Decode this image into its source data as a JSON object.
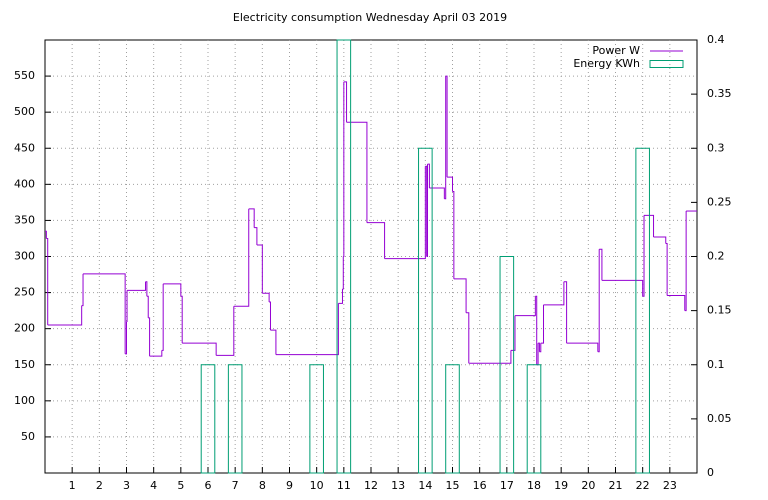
{
  "chart_data": {
    "type": "line",
    "title": "Electricity consumption Wednesday April 03 2019",
    "line_style": "steps",
    "grid": true,
    "legend": "top-right",
    "xlim": [
      0,
      24
    ],
    "xticks": [
      1,
      2,
      3,
      4,
      5,
      6,
      7,
      8,
      9,
      10,
      11,
      12,
      13,
      14,
      15,
      16,
      17,
      18,
      19,
      20,
      21,
      22,
      23
    ],
    "ylim": [
      0,
      600
    ],
    "yticks": [
      50,
      100,
      150,
      200,
      250,
      300,
      350,
      400,
      450,
      500,
      550
    ],
    "y2lim": [
      0,
      0.4
    ],
    "y2ticks": [
      0,
      0.05,
      0.1,
      0.15,
      0.2,
      0.25,
      0.3,
      0.35,
      0.4
    ],
    "series": [
      {
        "name": "Power W",
        "color": "#9400d3",
        "axis": "y",
        "type": "line",
        "x": [
          0,
          0.05,
          0.1,
          1.35,
          1.4,
          2.95,
          3.0,
          3.02,
          3.7,
          3.75,
          3.8,
          3.85,
          4.3,
          4.35,
          5.0,
          5.05,
          6.3,
          6.95,
          7.5,
          7.7,
          7.8,
          8.0,
          8.25,
          8.3,
          8.5,
          10.8,
          10.95,
          10.98,
          11.0,
          11.1,
          11.85,
          12.5,
          14.0,
          14.05,
          14.08,
          14.15,
          14.7,
          14.75,
          14.8,
          15.0,
          15.05,
          15.5,
          15.6,
          17.15,
          17.3,
          18.05,
          18.1,
          18.15,
          18.2,
          18.25,
          18.35,
          19.1,
          19.2,
          20.35,
          20.4,
          20.5,
          22.0,
          22.05,
          22.4,
          22.85,
          22.9,
          23.55,
          23.6
        ],
        "values": [
          335,
          325,
          205,
          232,
          276,
          165,
          210,
          253,
          265,
          245,
          215,
          162,
          170,
          262,
          245,
          180,
          163,
          231,
          366,
          340,
          316,
          249,
          237,
          198,
          164,
          235,
          255,
          300,
          542,
          486,
          347,
          297,
          425,
          300,
          428,
          395,
          380,
          550,
          410,
          390,
          269,
          222,
          152,
          170,
          218,
          245,
          150,
          180,
          168,
          180,
          233,
          265,
          180,
          168,
          310,
          267,
          245,
          357,
          327,
          318,
          246,
          225,
          363
        ]
      },
      {
        "name": "Energy KWh",
        "color": "#009e73",
        "axis": "y2",
        "type": "box",
        "x": [
          6,
          7,
          10,
          11,
          14,
          15,
          17,
          18,
          22
        ],
        "values": [
          0.1,
          0.1,
          0.1,
          0.4,
          0.3,
          0.1,
          0.2,
          0.1,
          0.3
        ]
      }
    ]
  }
}
